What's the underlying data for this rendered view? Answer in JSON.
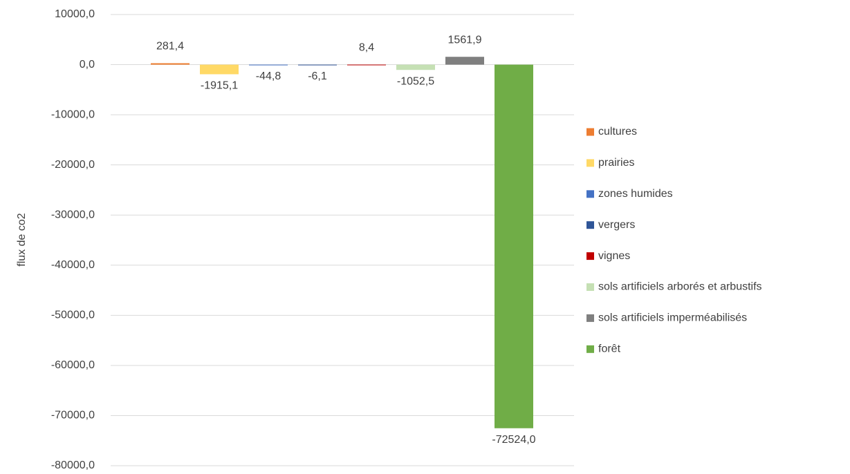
{
  "chart_data": {
    "type": "bar",
    "y_label": "flux de co2",
    "categories": [
      null
    ],
    "ylim": [
      -80000,
      10000
    ],
    "yticks": [
      {
        "value": 10000,
        "label": "10000,0"
      },
      {
        "value": 0,
        "label": "0,0"
      },
      {
        "value": -10000,
        "label": "-10000,0"
      },
      {
        "value": -20000,
        "label": "-20000,0"
      },
      {
        "value": -30000,
        "label": "-30000,0"
      },
      {
        "value": -40000,
        "label": "-40000,0"
      },
      {
        "value": -50000,
        "label": "-50000,0"
      },
      {
        "value": -60000,
        "label": "-60000,0"
      },
      {
        "value": -70000,
        "label": "-70000,0"
      },
      {
        "value": -80000,
        "label": "-80000,0"
      }
    ],
    "grid": true,
    "legend": "right",
    "series": [
      {
        "name": "cultures",
        "color": "#ed7d31",
        "values": [
          281.4
        ],
        "value_labels": [
          "281,4"
        ]
      },
      {
        "name": "prairies",
        "color": "#ffd966",
        "values": [
          -1915.1
        ],
        "value_labels": [
          "-1915,1"
        ]
      },
      {
        "name": "zones humides",
        "color": "#4472c4",
        "values": [
          -44.8
        ],
        "value_labels": [
          "-44,8"
        ]
      },
      {
        "name": "vergers",
        "color": "#2f5597",
        "values": [
          -6.1
        ],
        "value_labels": [
          "-6,1"
        ]
      },
      {
        "name": "vignes",
        "color": "#c00000",
        "values": [
          8.4
        ],
        "value_labels": [
          "8,4"
        ]
      },
      {
        "name": "sols artificiels arborés et arbustifs",
        "color": "#c5e0b4",
        "values": [
          -1052.5
        ],
        "value_labels": [
          "-1052,5"
        ]
      },
      {
        "name": "sols artificiels imperméabilisés",
        "color": "#7f7f7f",
        "values": [
          1561.9
        ],
        "value_labels": [
          "1561,9"
        ]
      },
      {
        "name": "forêt",
        "color": "#70ad47",
        "values": [
          -72524.0
        ],
        "value_labels": [
          "-72524,0"
        ]
      }
    ]
  }
}
